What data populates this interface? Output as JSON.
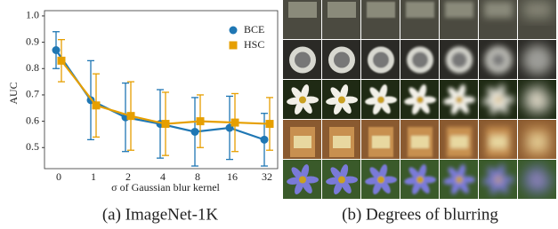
{
  "chart_data": {
    "type": "line_errorbar",
    "caption": "(a) ImageNet-1K",
    "x_label": "σ of Gaussian blur kernel",
    "y_label": "AUC",
    "categories": [
      "0",
      "1",
      "2",
      "4",
      "8",
      "16",
      "32"
    ],
    "series": [
      {
        "name": "BCE",
        "color": "#1f77b4",
        "values": [
          0.87,
          0.68,
          0.615,
          0.59,
          0.56,
          0.575,
          0.53
        ],
        "errors": [
          0.07,
          0.15,
          0.13,
          0.13,
          0.13,
          0.12,
          0.1
        ]
      },
      {
        "name": "HSC",
        "color": "#e69f00",
        "values": [
          0.83,
          0.66,
          0.62,
          0.59,
          0.6,
          0.595,
          0.59
        ],
        "errors": [
          0.08,
          0.12,
          0.13,
          0.12,
          0.1,
          0.11,
          0.1
        ]
      }
    ],
    "ylim": [
      0.42,
      1.02
    ],
    "yticks": [
      {
        "value": 0.5,
        "label": "0.5"
      },
      {
        "value": 0.6,
        "label": "0.6"
      },
      {
        "value": 0.7,
        "label": "0.7"
      },
      {
        "value": 0.8,
        "label": "0.8"
      },
      {
        "value": 0.9,
        "label": "0.9"
      },
      {
        "value": 1,
        "label": "1.0"
      }
    ],
    "legend": "upper right",
    "grid": false
  },
  "image_panel": {
    "caption": "(b) Degrees of blurring"
  }
}
